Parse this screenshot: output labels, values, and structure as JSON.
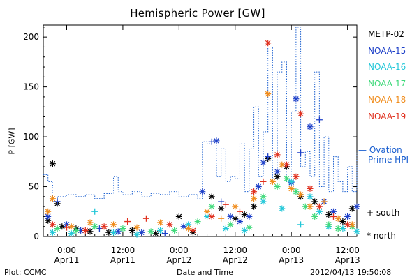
{
  "footer": {
    "left": "Plot: CCMC",
    "center": "Date and Time",
    "right": "2012/04/13 19:50:08"
  },
  "chart_data": {
    "type": "scatter",
    "title": "Hemispheric Power [GW]",
    "ylabel": "P [GW]",
    "xlabel": "Date and Time",
    "ylim": [
      0,
      212
    ],
    "y_ticks": [
      0,
      50,
      100,
      150,
      200
    ],
    "x_range_hours": [
      -5,
      62
    ],
    "x_ticks": [
      {
        "x": 0,
        "label1": "0:00",
        "label2": "Apr11"
      },
      {
        "x": 12,
        "label1": "12:00",
        "label2": "Apr11"
      },
      {
        "x": 24,
        "label1": "0:00",
        "label2": "Apr12"
      },
      {
        "x": 36,
        "label1": "12:00",
        "label2": "Apr12"
      },
      {
        "x": 48,
        "label1": "0:00",
        "label2": "Apr13"
      },
      {
        "x": 60,
        "label1": "12:00",
        "label2": "Apr13"
      }
    ],
    "ovation": {
      "name": "Ovation Prime HPI",
      "label_line1": "Ovation",
      "label_line2": "Prime HPI",
      "color": "#1a5fd0",
      "x": [
        -5,
        -4,
        -3,
        -2,
        0,
        2,
        4,
        6,
        8,
        10,
        11,
        12,
        14,
        16,
        18,
        20,
        22,
        24,
        26,
        28,
        29,
        30,
        31,
        32,
        33,
        34,
        35,
        36,
        37,
        38,
        39,
        40,
        41,
        42,
        43,
        44,
        45,
        46,
        47,
        48,
        49,
        50,
        51,
        52,
        53,
        54,
        55,
        56,
        57,
        58,
        59,
        60,
        61,
        62
      ],
      "y": [
        62,
        55,
        35,
        40,
        42,
        40,
        42,
        38,
        43,
        60,
        45,
        42,
        45,
        40,
        43,
        42,
        45,
        40,
        42,
        38,
        95,
        93,
        97,
        60,
        88,
        55,
        60,
        58,
        93,
        45,
        88,
        130,
        60,
        105,
        190,
        58,
        165,
        175,
        55,
        125,
        210,
        70,
        85,
        60,
        165,
        50,
        100,
        45,
        80,
        55,
        45,
        70,
        45,
        85
      ]
    },
    "legend": [
      {
        "name": "METP-02",
        "color": "#000000"
      },
      {
        "name": "NOAA-15",
        "color": "#1c3fc8"
      },
      {
        "name": "NOAA-16",
        "color": "#22c7d8"
      },
      {
        "name": "NOAA-17",
        "color": "#3fd97a"
      },
      {
        "name": "NOAA-18",
        "color": "#f08c1c"
      },
      {
        "name": "NOAA-19",
        "color": "#e0301e"
      }
    ],
    "marker_legend": [
      {
        "symbol": "+",
        "name": "south"
      },
      {
        "symbol": "*",
        "name": "north"
      }
    ],
    "series": [
      {
        "name": "METP-02",
        "color": "#000000",
        "points": [
          [
            -3,
            73,
            "*"
          ],
          [
            -2,
            33,
            "*"
          ],
          [
            -4,
            16,
            "*"
          ],
          [
            -1,
            10,
            "*"
          ],
          [
            2,
            8,
            "*"
          ],
          [
            5,
            5,
            "*"
          ],
          [
            9,
            4,
            "*"
          ],
          [
            14,
            6,
            "*"
          ],
          [
            19,
            3,
            "*"
          ],
          [
            24,
            20,
            "*"
          ],
          [
            27,
            4,
            "*"
          ],
          [
            31,
            40,
            "*"
          ],
          [
            33,
            28,
            "*"
          ],
          [
            36,
            18,
            "*"
          ],
          [
            38,
            22,
            "*"
          ],
          [
            40,
            30,
            "*"
          ],
          [
            43,
            78,
            "*"
          ],
          [
            45,
            60,
            "*"
          ],
          [
            47,
            70,
            "*"
          ],
          [
            50,
            40,
            "*"
          ],
          [
            53,
            35,
            "*"
          ],
          [
            56,
            22,
            "*"
          ],
          [
            59,
            15,
            "*"
          ],
          [
            61,
            28,
            "*"
          ]
        ]
      },
      {
        "name": "NOAA-15",
        "color": "#1c3fc8",
        "points": [
          [
            -4,
            20,
            "*"
          ],
          [
            -2,
            35,
            "+"
          ],
          [
            0,
            12,
            "*"
          ],
          [
            3,
            6,
            "*"
          ],
          [
            7,
            8,
            "+"
          ],
          [
            11,
            5,
            "*"
          ],
          [
            16,
            4,
            "*"
          ],
          [
            21,
            3,
            "+"
          ],
          [
            25,
            10,
            "*"
          ],
          [
            29,
            45,
            "*"
          ],
          [
            31,
            95,
            "+"
          ],
          [
            32,
            96,
            "*"
          ],
          [
            33,
            35,
            "+"
          ],
          [
            35,
            20,
            "*"
          ],
          [
            37,
            15,
            "*"
          ],
          [
            39,
            20,
            "*"
          ],
          [
            41,
            50,
            "*"
          ],
          [
            42,
            74,
            "*"
          ],
          [
            43,
            80,
            "+"
          ],
          [
            45,
            65,
            "*"
          ],
          [
            48,
            54,
            "*"
          ],
          [
            49,
            138,
            "*"
          ],
          [
            50,
            84,
            "+"
          ],
          [
            52,
            110,
            "*"
          ],
          [
            54,
            117,
            "+"
          ],
          [
            55,
            35,
            "*"
          ],
          [
            57,
            25,
            "*"
          ],
          [
            60,
            20,
            "*"
          ],
          [
            62,
            30,
            "*"
          ]
        ]
      },
      {
        "name": "NOAA-16",
        "color": "#22c7d8",
        "points": [
          [
            -3,
            4,
            "*"
          ],
          [
            1,
            3,
            "*"
          ],
          [
            6,
            25,
            "+"
          ],
          [
            10,
            4,
            "*"
          ],
          [
            15,
            2,
            "*"
          ],
          [
            20,
            6,
            "*"
          ],
          [
            26,
            12,
            "*"
          ],
          [
            30,
            20,
            "*"
          ],
          [
            34,
            8,
            "*"
          ],
          [
            38,
            6,
            "*"
          ],
          [
            42,
            35,
            "*"
          ],
          [
            46,
            28,
            "*"
          ],
          [
            48,
            55,
            "*"
          ],
          [
            50,
            12,
            "+"
          ],
          [
            52,
            40,
            "*"
          ],
          [
            54,
            25,
            "*"
          ],
          [
            56,
            10,
            "*"
          ],
          [
            59,
            8,
            "*"
          ],
          [
            62,
            5,
            "*"
          ]
        ]
      },
      {
        "name": "NOAA-17",
        "color": "#3fd97a",
        "points": [
          [
            -2,
            8,
            "*"
          ],
          [
            2,
            6,
            "*"
          ],
          [
            6,
            10,
            "*"
          ],
          [
            12,
            8,
            "*"
          ],
          [
            18,
            5,
            "*"
          ],
          [
            23,
            6,
            "*"
          ],
          [
            28,
            15,
            "*"
          ],
          [
            31,
            30,
            "*"
          ],
          [
            35,
            12,
            "*"
          ],
          [
            39,
            9,
            "*"
          ],
          [
            42,
            40,
            "*"
          ],
          [
            45,
            50,
            "*"
          ],
          [
            47,
            58,
            "*"
          ],
          [
            49,
            45,
            "*"
          ],
          [
            51,
            30,
            "*"
          ],
          [
            53,
            20,
            "*"
          ],
          [
            56,
            12,
            "*"
          ],
          [
            58,
            8,
            "*"
          ],
          [
            61,
            10,
            "*"
          ]
        ]
      },
      {
        "name": "NOAA-18",
        "color": "#f08c1c",
        "points": [
          [
            -4,
            25,
            "*"
          ],
          [
            -3,
            38,
            "*"
          ],
          [
            1,
            10,
            "*"
          ],
          [
            5,
            14,
            "*"
          ],
          [
            10,
            12,
            "*"
          ],
          [
            15,
            9,
            "*"
          ],
          [
            20,
            14,
            "*"
          ],
          [
            26,
            8,
            "*"
          ],
          [
            30,
            25,
            "*"
          ],
          [
            33,
            18,
            "+"
          ],
          [
            36,
            30,
            "*"
          ],
          [
            40,
            38,
            "*"
          ],
          [
            43,
            143,
            "*"
          ],
          [
            44,
            55,
            "*"
          ],
          [
            46,
            72,
            "*"
          ],
          [
            48,
            48,
            "*"
          ],
          [
            50,
            42,
            "*"
          ],
          [
            52,
            30,
            "*"
          ],
          [
            55,
            35,
            "+"
          ],
          [
            58,
            18,
            "*"
          ],
          [
            61,
            12,
            "*"
          ]
        ]
      },
      {
        "name": "NOAA-19",
        "color": "#e0301e",
        "points": [
          [
            -3,
            12,
            "*"
          ],
          [
            0,
            9,
            "+"
          ],
          [
            4,
            6,
            "*"
          ],
          [
            8,
            10,
            "*"
          ],
          [
            13,
            15,
            "+"
          ],
          [
            17,
            18,
            "+"
          ],
          [
            22,
            12,
            "*"
          ],
          [
            27,
            6,
            "*"
          ],
          [
            31,
            20,
            "*"
          ],
          [
            34,
            32,
            "+"
          ],
          [
            37,
            25,
            "+"
          ],
          [
            40,
            45,
            "*"
          ],
          [
            42,
            55,
            "+"
          ],
          [
            43,
            194,
            "*"
          ],
          [
            45,
            82,
            "*"
          ],
          [
            47,
            72,
            "*"
          ],
          [
            49,
            60,
            "*"
          ],
          [
            50,
            123,
            "*"
          ],
          [
            52,
            48,
            "*"
          ],
          [
            54,
            30,
            "*"
          ],
          [
            57,
            20,
            "+"
          ],
          [
            60,
            12,
            "*"
          ]
        ]
      }
    ]
  }
}
